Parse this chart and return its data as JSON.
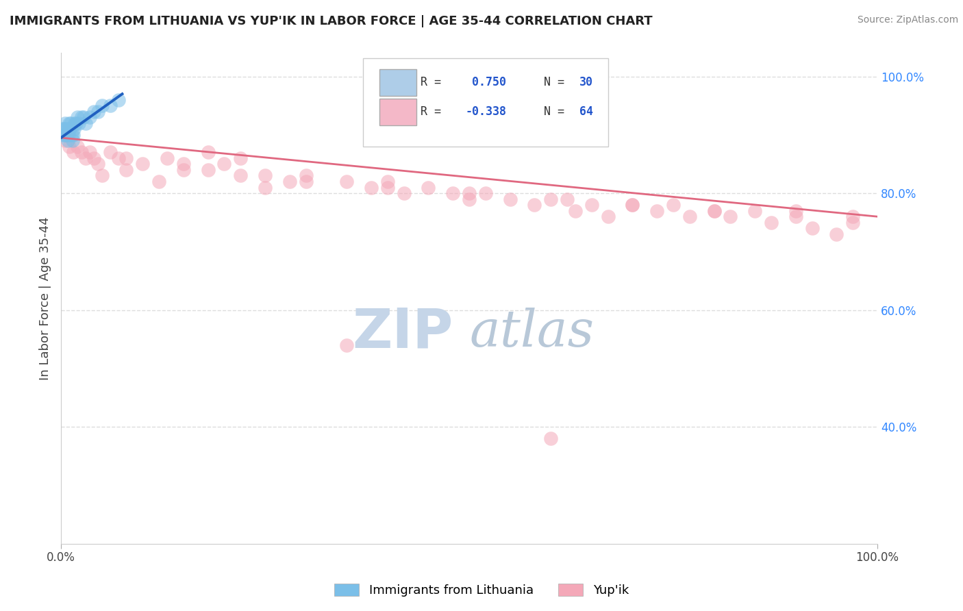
{
  "title": "IMMIGRANTS FROM LITHUANIA VS YUP'IK IN LABOR FORCE | AGE 35-44 CORRELATION CHART",
  "source": "Source: ZipAtlas.com",
  "ylabel": "In Labor Force | Age 35-44",
  "legend_entries": [
    {
      "r_label": "R =  0.750",
      "n_label": "  N = 30",
      "color": "#aecde8"
    },
    {
      "r_label": "R = -0.338",
      "n_label": "  N = 64",
      "color": "#f4b8c8"
    }
  ],
  "bottom_legend": [
    "Immigrants from Lithuania",
    "Yup'ik"
  ],
  "watermark_zip": "ZIP",
  "watermark_atlas": "atlas",
  "blue_scatter": {
    "x": [
      0.2,
      0.3,
      0.4,
      0.5,
      0.5,
      0.6,
      0.7,
      0.8,
      0.9,
      1.0,
      1.0,
      1.1,
      1.2,
      1.3,
      1.4,
      1.5,
      1.6,
      1.7,
      1.8,
      2.0,
      2.2,
      2.5,
      2.8,
      3.0,
      3.5,
      4.0,
      4.5,
      5.0,
      6.0,
      7.0
    ],
    "y": [
      91,
      90,
      91,
      92,
      90,
      91,
      90,
      89,
      90,
      91,
      92,
      91,
      92,
      90,
      89,
      90,
      91,
      92,
      92,
      93,
      92,
      93,
      93,
      92,
      93,
      94,
      94,
      95,
      95,
      96
    ]
  },
  "pink_scatter": {
    "x": [
      0.5,
      1.0,
      1.5,
      2.0,
      2.5,
      3.0,
      3.5,
      4.0,
      4.5,
      6.0,
      8.0,
      10.0,
      13.0,
      15.0,
      18.0,
      20.0,
      22.0,
      25.0,
      28.0,
      30.0,
      35.0,
      38.0,
      40.0,
      42.0,
      45.0,
      48.0,
      50.0,
      52.0,
      55.0,
      58.0,
      60.0,
      63.0,
      65.0,
      67.0,
      70.0,
      73.0,
      75.0,
      77.0,
      80.0,
      82.0,
      85.0,
      87.0,
      90.0,
      92.0,
      95.0,
      97.0,
      5.0,
      8.0,
      12.0,
      18.0,
      22.0,
      25.0,
      30.0,
      40.0,
      50.0,
      62.0,
      70.0,
      80.0,
      90.0,
      97.0,
      7.0,
      15.0,
      35.0,
      60.0
    ],
    "y": [
      89,
      88,
      87,
      88,
      87,
      86,
      87,
      86,
      85,
      87,
      86,
      85,
      86,
      85,
      87,
      85,
      86,
      83,
      82,
      83,
      82,
      81,
      82,
      80,
      81,
      80,
      79,
      80,
      79,
      78,
      79,
      77,
      78,
      76,
      78,
      77,
      78,
      76,
      77,
      76,
      77,
      75,
      76,
      74,
      73,
      75,
      83,
      84,
      82,
      84,
      83,
      81,
      82,
      81,
      80,
      79,
      78,
      77,
      77,
      76,
      86,
      84,
      54,
      38
    ]
  },
  "blue_line": {
    "x": [
      0.0,
      7.5
    ],
    "y": [
      89.5,
      97.0
    ]
  },
  "pink_line": {
    "x": [
      0.0,
      100.0
    ],
    "y": [
      89.5,
      76.0
    ]
  },
  "xlim": [
    0,
    100
  ],
  "ylim": [
    20,
    104
  ],
  "ytick_positions": [
    100,
    80,
    60,
    40
  ],
  "ytick_labels": [
    "100.0%",
    "80.0%",
    "60.0%",
    "40.0%"
  ],
  "grid_color": "#dddddd",
  "blue_color": "#7bbfe8",
  "pink_color": "#f4a8b8",
  "blue_line_color": "#2060c0",
  "pink_line_color": "#e06880",
  "title_fontsize": 13,
  "source_fontsize": 10,
  "watermark_color_zip": "#c5d5e8",
  "watermark_color_atlas": "#b8c8d8",
  "watermark_fontsize": 58,
  "legend_color_blue": "#2060cc",
  "legend_color_black": "#333333"
}
